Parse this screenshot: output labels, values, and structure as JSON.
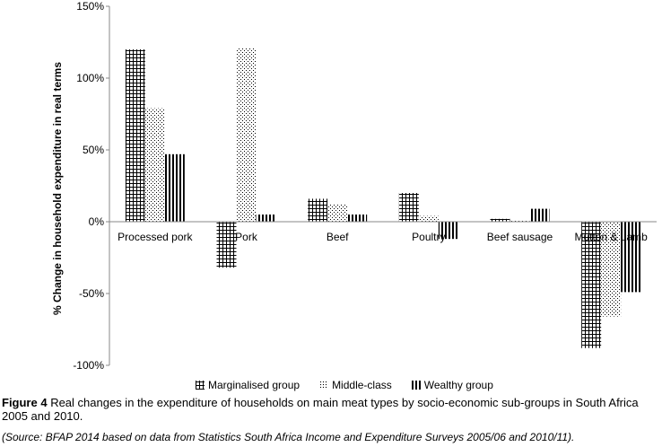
{
  "chart_data": {
    "type": "bar",
    "title": "",
    "xlabel": "",
    "ylabel": "% Change in household expenditure in real terms",
    "ylim": [
      -100,
      150
    ],
    "yticks": [
      -100,
      -50,
      0,
      50,
      100,
      150
    ],
    "ytick_labels": [
      "-100%",
      "-50%",
      "0%",
      "50%",
      "100%",
      "150%"
    ],
    "categories": [
      "Processed pork",
      "Pork",
      "Beef",
      "Poultry",
      "Beef sausage",
      "Mutton & Lamb"
    ],
    "series": [
      {
        "name": "Marginalised group",
        "values": [
          120,
          -32,
          16,
          20,
          2,
          -88
        ]
      },
      {
        "name": "Middle-class",
        "values": [
          79,
          121,
          12,
          4,
          1,
          -66
        ]
      },
      {
        "name": "Wealthy group",
        "values": [
          47,
          5,
          5,
          -12,
          9,
          -49
        ]
      }
    ],
    "grid": false,
    "legend_placement": "bottom"
  },
  "caption": {
    "label": "Figure 4",
    "text": " Real changes in the expenditure of households on main meat types by socio-economic sub-groups in South Africa 2005 and 2010.",
    "source": "(Source: BFAP 2014 based on data from Statistics South Africa Income and Expenditure Surveys 2005/06 and 2010/11)."
  }
}
